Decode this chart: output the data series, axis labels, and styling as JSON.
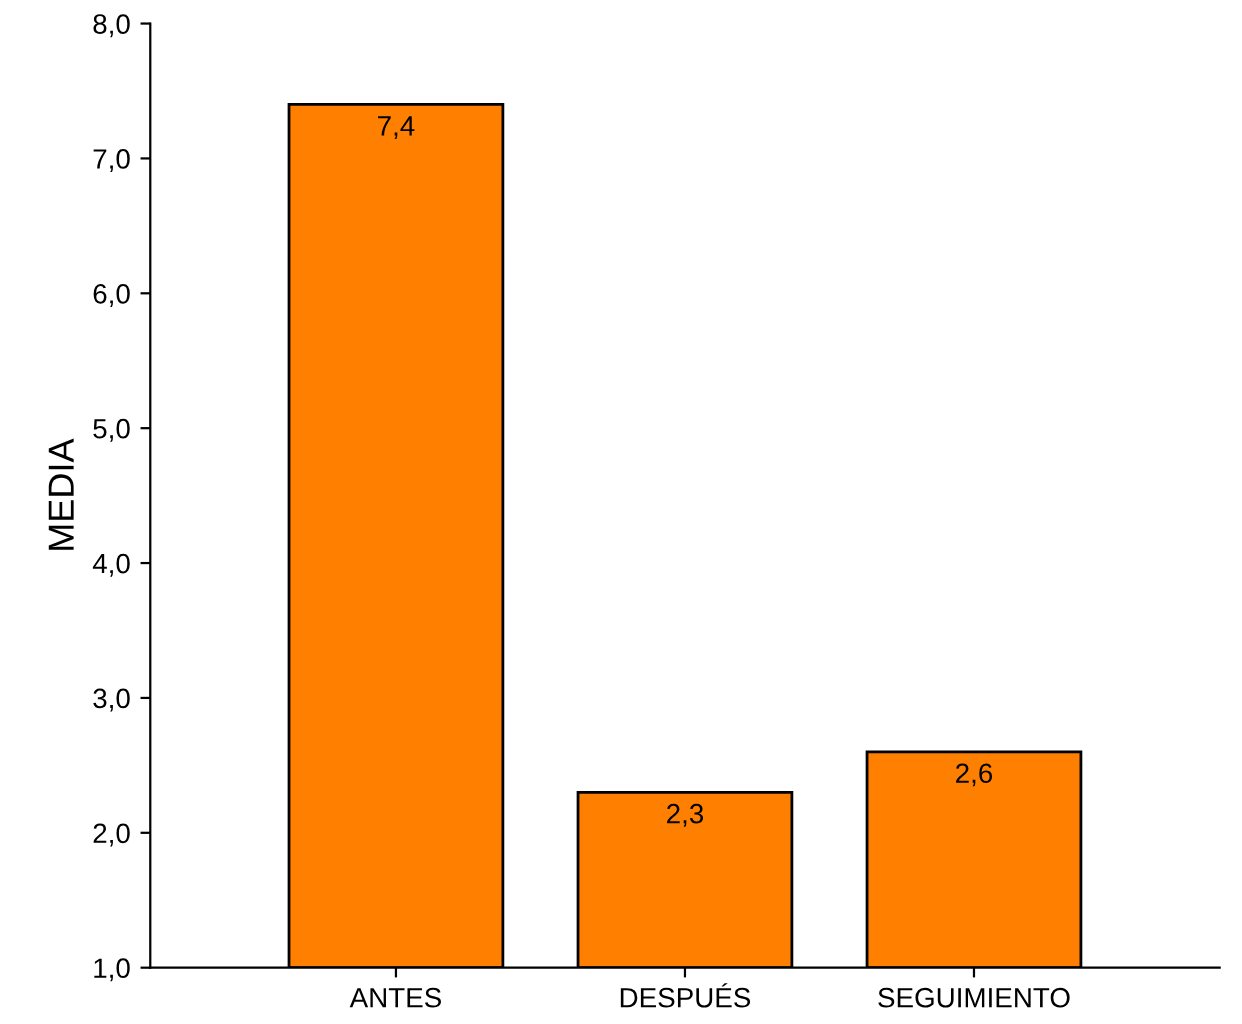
{
  "chart_data": {
    "type": "bar",
    "ylabel": "MEDIA",
    "categories": [
      "ANTES",
      "DESPUÉS",
      "SEGUIMIENTO"
    ],
    "values": [
      7.4,
      2.3,
      2.6
    ],
    "value_labels": [
      "7,4",
      "2,3",
      "2,6"
    ],
    "color": "#ff8000",
    "ylim": [
      1,
      8
    ],
    "yticks": [
      {
        "value": 1,
        "label": "1,0"
      },
      {
        "value": 2,
        "label": "2,0"
      },
      {
        "value": 3,
        "label": "3,0"
      },
      {
        "value": 4,
        "label": "4,0"
      },
      {
        "value": 5,
        "label": "5,0"
      },
      {
        "value": 6,
        "label": "6,0"
      },
      {
        "value": 7,
        "label": "7,0"
      },
      {
        "value": 8,
        "label": "8,0"
      }
    ],
    "grid": false,
    "legend": false
  }
}
